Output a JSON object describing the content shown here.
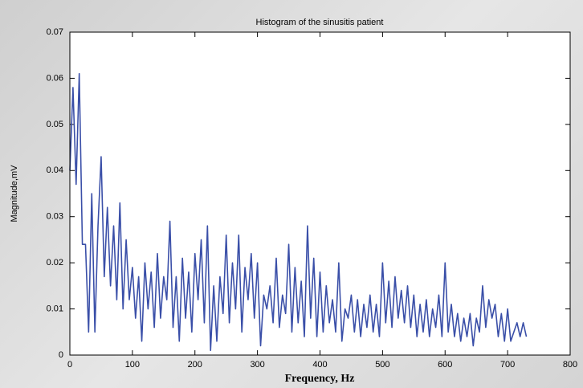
{
  "chart_data": {
    "type": "line",
    "title": "Histogram of the sinusitis patient",
    "xlabel": "Frequency, Hz",
    "ylabel": "Magnitude,mV",
    "x": [
      0,
      5,
      10,
      15,
      20,
      25,
      30,
      35,
      40,
      45,
      50,
      55,
      60,
      65,
      70,
      75,
      80,
      85,
      90,
      95,
      100,
      105,
      110,
      115,
      120,
      125,
      130,
      135,
      140,
      145,
      150,
      155,
      160,
      165,
      170,
      175,
      180,
      185,
      190,
      195,
      200,
      205,
      210,
      215,
      220,
      225,
      230,
      235,
      240,
      245,
      250,
      255,
      260,
      265,
      270,
      275,
      280,
      285,
      290,
      295,
      300,
      305,
      310,
      315,
      320,
      325,
      330,
      335,
      340,
      345,
      350,
      355,
      360,
      365,
      370,
      375,
      380,
      385,
      390,
      395,
      400,
      405,
      410,
      415,
      420,
      425,
      430,
      435,
      440,
      445,
      450,
      455,
      460,
      465,
      470,
      475,
      480,
      485,
      490,
      495,
      500,
      505,
      510,
      515,
      520,
      525,
      530,
      535,
      540,
      545,
      550,
      555,
      560,
      565,
      570,
      575,
      580,
      585,
      590,
      595,
      600,
      605,
      610,
      615,
      620,
      625,
      630,
      635,
      640,
      645,
      650,
      655,
      660,
      665,
      670,
      675,
      680,
      685,
      690,
      695,
      700,
      705,
      710,
      715,
      720,
      725,
      730
    ],
    "series": [
      {
        "name": "Magnitude",
        "color": "#3a4fa8",
        "values": [
          0.04,
          0.058,
          0.037,
          0.061,
          0.024,
          0.024,
          0.005,
          0.035,
          0.005,
          0.028,
          0.043,
          0.017,
          0.032,
          0.015,
          0.028,
          0.012,
          0.033,
          0.01,
          0.025,
          0.012,
          0.019,
          0.008,
          0.017,
          0.003,
          0.02,
          0.01,
          0.018,
          0.006,
          0.022,
          0.008,
          0.017,
          0.012,
          0.029,
          0.006,
          0.017,
          0.003,
          0.021,
          0.008,
          0.018,
          0.005,
          0.022,
          0.012,
          0.025,
          0.007,
          0.028,
          0.001,
          0.015,
          0.003,
          0.017,
          0.009,
          0.026,
          0.007,
          0.02,
          0.01,
          0.026,
          0.005,
          0.019,
          0.012,
          0.022,
          0.008,
          0.02,
          0.002,
          0.013,
          0.01,
          0.015,
          0.007,
          0.021,
          0.006,
          0.013,
          0.009,
          0.024,
          0.005,
          0.019,
          0.007,
          0.016,
          0.004,
          0.028,
          0.008,
          0.021,
          0.004,
          0.018,
          0.005,
          0.015,
          0.007,
          0.012,
          0.005,
          0.02,
          0.003,
          0.01,
          0.008,
          0.013,
          0.005,
          0.012,
          0.004,
          0.011,
          0.006,
          0.013,
          0.005,
          0.011,
          0.004,
          0.02,
          0.007,
          0.016,
          0.006,
          0.017,
          0.008,
          0.014,
          0.007,
          0.015,
          0.006,
          0.013,
          0.004,
          0.011,
          0.005,
          0.012,
          0.004,
          0.01,
          0.006,
          0.013,
          0.004,
          0.02,
          0.005,
          0.011,
          0.004,
          0.009,
          0.003,
          0.008,
          0.004,
          0.009,
          0.002,
          0.008,
          0.005,
          0.015,
          0.006,
          0.012,
          0.008,
          0.011,
          0.004,
          0.009,
          0.003,
          0.01,
          0.003,
          0.005,
          0.007,
          0.004,
          0.007,
          0.004
        ]
      }
    ],
    "xlim": [
      0,
      800
    ],
    "xticks": [
      0,
      100,
      200,
      300,
      400,
      500,
      600,
      700,
      800
    ],
    "ylim": [
      0,
      0.07
    ],
    "yticks": [
      0,
      0.01,
      0.02,
      0.03,
      0.04,
      0.05,
      0.06,
      0.07
    ],
    "grid": false
  }
}
